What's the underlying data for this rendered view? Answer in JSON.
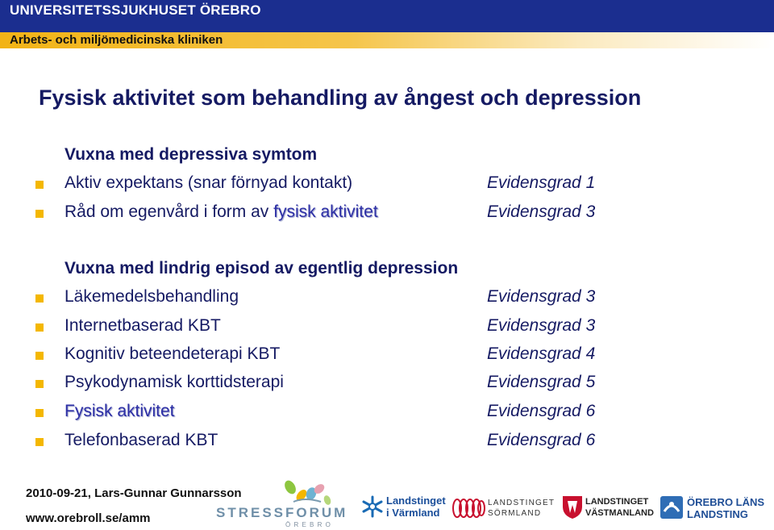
{
  "header": {
    "org": "UNIVERSITETSSJUKHUSET ÖREBRO",
    "dept": "Arbets- och miljömedicinska kliniken",
    "brand_blue": "#1B2E8F",
    "brand_gold": "#F2B316"
  },
  "title": "Fysisk aktivitet som behandling av ångest och depression",
  "section1": {
    "heading": "Vuxna med depressiva symtom",
    "items": [
      {
        "text": "Aktiv expektans (snar förnyad kontakt)",
        "grade": "Evidensgrad 1"
      },
      {
        "text_before": "Råd om egenvård i form av ",
        "text_emph": "fysisk aktivitet",
        "grade": "Evidensgrad 3"
      }
    ]
  },
  "section2": {
    "heading": "Vuxna med lindrig episod av egentlig depression",
    "items": [
      {
        "text": "Läkemedelsbehandling",
        "grade": "Evidensgrad 3"
      },
      {
        "text": "Internetbaserad KBT",
        "grade": "Evidensgrad 3"
      },
      {
        "text": "Kognitiv beteendeterapi KBT",
        "grade": "Evidensgrad 4"
      },
      {
        "text": "Psykodynamisk korttidsterapi",
        "grade": "Evidensgrad 5"
      },
      {
        "text": "Fysisk aktivitet",
        "grade": "Evidensgrad 6"
      },
      {
        "text": "Telefonbaserad KBT",
        "grade": "Evidensgrad 6"
      }
    ]
  },
  "footer": {
    "date_author": "2010-09-21, Lars-Gunnar Gunnarsson",
    "url": "www.orebroll.se/amm"
  },
  "logos": {
    "stressforum": {
      "name": "STRESSFORUM",
      "sub": "Ö R E B R O"
    },
    "varmland": {
      "line1": "Landstinget",
      "line2": "i Värmland"
    },
    "sormland": {
      "line1": "LANDSTINGET",
      "line2": "SÖRMLAND"
    },
    "vastmanland": {
      "line1": "LANDSTINGET",
      "line2": "VÄSTMANLAND"
    },
    "orebro": {
      "line1": "ÖREBRO LÄNS",
      "line2": "LANDSTING"
    }
  }
}
